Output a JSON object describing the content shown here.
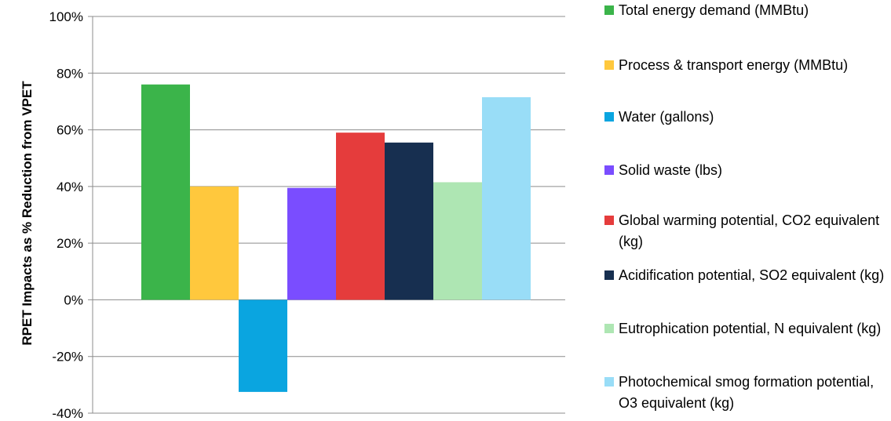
{
  "chart_data": {
    "type": "bar",
    "title": "",
    "xlabel": "",
    "ylabel": "RPET Impacts as % Reduction from VPET",
    "ylim": [
      -40,
      100
    ],
    "yticks": [
      "100%",
      "80%",
      "60%",
      "40%",
      "20%",
      "0%",
      "-20%",
      "-40%"
    ],
    "grid": true,
    "legend_position": "right",
    "series": [
      {
        "name": "Total energy demand (MMBtu)",
        "value": 76,
        "color": "#3bb44a"
      },
      {
        "name": "Process & transport energy (MMBtu)",
        "value": 40,
        "color": "#ffc83d"
      },
      {
        "name": "Water (gallons)",
        "value": -32.5,
        "color": "#0aa5e0"
      },
      {
        "name": "Solid waste (lbs)",
        "value": 39.5,
        "color": "#7a4dff"
      },
      {
        "name": "Global warming potential, CO2 equivalent (kg)",
        "value": 59,
        "color": "#e53c3c"
      },
      {
        "name": "Acidification potential, SO2 equivalent (kg)",
        "value": 55.5,
        "color": "#172f50"
      },
      {
        "name": "Eutrophication potential, N equivalent (kg)",
        "value": 41.5,
        "color": "#aee6b3"
      },
      {
        "name": "Photochemical smog formation potential, O3 equivalent (kg)",
        "value": 71.5,
        "color": "#99ddf7"
      }
    ]
  }
}
